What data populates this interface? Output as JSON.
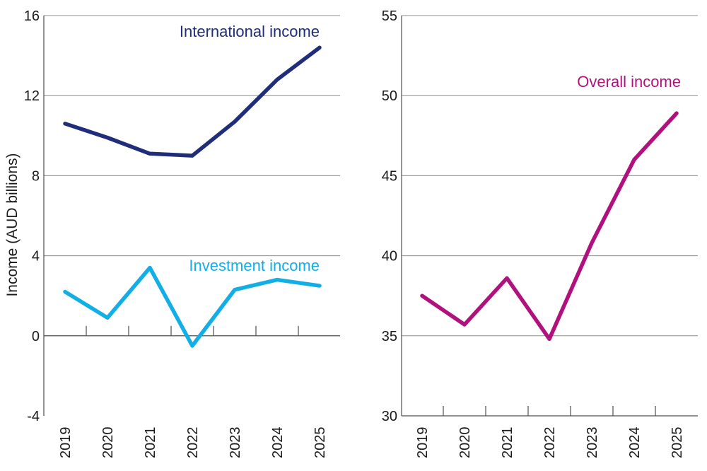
{
  "chart_data": [
    {
      "type": "line",
      "ylabel": "Income (AUD billions)",
      "ylim": [
        -4,
        16
      ],
      "yticks": [
        -4,
        0,
        4,
        8,
        12,
        16
      ],
      "categories": [
        "2019",
        "2020",
        "2021",
        "2022",
        "2023",
        "2024",
        "2025"
      ],
      "series": [
        {
          "name": "International income",
          "color": "#1f2d7a",
          "values": [
            10.6,
            9.9,
            9.1,
            9.0,
            10.7,
            12.8,
            14.4
          ]
        },
        {
          "name": "Investment income",
          "color": "#12aee6",
          "values": [
            2.2,
            0.9,
            3.4,
            -0.5,
            2.3,
            2.8,
            2.5
          ]
        }
      ]
    },
    {
      "type": "line",
      "ylim": [
        30,
        55
      ],
      "yticks": [
        30,
        35,
        40,
        45,
        50,
        55
      ],
      "categories": [
        "2019",
        "2020",
        "2021",
        "2022",
        "2023",
        "2024",
        "2025"
      ],
      "series": [
        {
          "name": "Overall income",
          "color": "#b0117d",
          "values": [
            37.5,
            35.7,
            38.6,
            34.8,
            40.8,
            46.0,
            48.9
          ]
        }
      ]
    }
  ]
}
